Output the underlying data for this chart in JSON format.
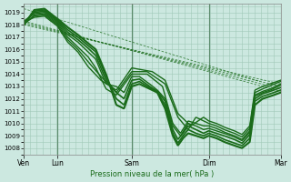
{
  "xlabel": "Pression niveau de la mer( hPa )",
  "bg_color": "#cce8e0",
  "grid_color": "#a0c8b8",
  "line_color": "#1a6b1a",
  "ylim": [
    1007.5,
    1019.7
  ],
  "yticks": [
    1008,
    1009,
    1010,
    1011,
    1012,
    1013,
    1014,
    1015,
    1016,
    1017,
    1018,
    1019
  ],
  "xtick_labels": [
    "Ven",
    "Lun",
    "Sam",
    "Dim",
    "Mar"
  ],
  "xtick_positions": [
    0.0,
    0.13,
    0.42,
    0.72,
    1.0
  ],
  "x_vlines": [
    0.0,
    0.13,
    0.42,
    0.72,
    1.0
  ],
  "dashed_lines": [
    {
      "xp": [
        0.0,
        1.0
      ],
      "yp": [
        1018.0,
        1013.2
      ]
    },
    {
      "xp": [
        0.0,
        1.0
      ],
      "yp": [
        1018.1,
        1013.0
      ]
    },
    {
      "xp": [
        0.0,
        1.0
      ],
      "yp": [
        1018.2,
        1012.8
      ]
    },
    {
      "xp": [
        0.0,
        1.0
      ],
      "yp": [
        1018.3,
        1012.6
      ]
    },
    {
      "xp": [
        0.0,
        0.92
      ],
      "yp": [
        1019.3,
        1013.4
      ]
    }
  ],
  "solid_lines": [
    {
      "xp": [
        0.0,
        0.04,
        0.08,
        0.13,
        0.17,
        0.21,
        0.25,
        0.28,
        0.32,
        0.36,
        0.39,
        0.42,
        0.45,
        0.49,
        0.52,
        0.55,
        0.58,
        0.6,
        0.62,
        0.64,
        0.67,
        0.7,
        0.72,
        0.75,
        0.78,
        0.82,
        0.85,
        0.88,
        0.9,
        0.93,
        0.96,
        1.0
      ],
      "yp": [
        1018.0,
        1019.2,
        1019.3,
        1018.5,
        1017.8,
        1017.2,
        1016.5,
        1016.0,
        1014.0,
        1011.5,
        1011.2,
        1013.0,
        1013.2,
        1012.8,
        1012.5,
        1011.2,
        1009.0,
        1008.2,
        1008.8,
        1009.2,
        1009.0,
        1008.8,
        1009.0,
        1008.8,
        1008.5,
        1008.2,
        1008.0,
        1008.5,
        1011.5,
        1012.0,
        1012.2,
        1012.5
      ],
      "lw": 1.5
    },
    {
      "xp": [
        0.0,
        0.04,
        0.08,
        0.13,
        0.17,
        0.21,
        0.25,
        0.28,
        0.32,
        0.36,
        0.39,
        0.42,
        0.45,
        0.49,
        0.52,
        0.55,
        0.58,
        0.6,
        0.62,
        0.64,
        0.67,
        0.7,
        0.72,
        0.75,
        0.78,
        0.82,
        0.85,
        0.88,
        0.9,
        0.93,
        0.96,
        1.0
      ],
      "yp": [
        1018.1,
        1019.1,
        1019.2,
        1018.4,
        1017.6,
        1017.0,
        1016.3,
        1015.8,
        1013.8,
        1012.0,
        1011.5,
        1013.2,
        1013.4,
        1012.9,
        1012.5,
        1011.5,
        1009.2,
        1008.4,
        1009.0,
        1009.5,
        1009.2,
        1009.0,
        1009.2,
        1009.0,
        1008.7,
        1008.4,
        1008.2,
        1008.8,
        1011.8,
        1012.2,
        1012.4,
        1012.7
      ],
      "lw": 1.2
    },
    {
      "xp": [
        0.0,
        0.04,
        0.08,
        0.13,
        0.17,
        0.21,
        0.25,
        0.28,
        0.32,
        0.36,
        0.39,
        0.42,
        0.45,
        0.49,
        0.52,
        0.55,
        0.58,
        0.6,
        0.62,
        0.64,
        0.67,
        0.7,
        0.72,
        0.75,
        0.78,
        0.82,
        0.85,
        0.88,
        0.9,
        0.93,
        0.96,
        1.0
      ],
      "yp": [
        1018.2,
        1019.0,
        1019.1,
        1018.3,
        1017.4,
        1016.8,
        1016.1,
        1015.5,
        1013.5,
        1012.5,
        1012.0,
        1013.5,
        1013.6,
        1013.0,
        1012.6,
        1011.8,
        1009.5,
        1008.7,
        1009.2,
        1009.8,
        1009.5,
        1009.2,
        1009.4,
        1009.2,
        1009.0,
        1008.7,
        1008.4,
        1009.1,
        1012.0,
        1012.4,
        1012.6,
        1012.9
      ],
      "lw": 1.2
    },
    {
      "xp": [
        0.0,
        0.04,
        0.08,
        0.13,
        0.17,
        0.21,
        0.25,
        0.28,
        0.32,
        0.36,
        0.39,
        0.42,
        0.45,
        0.49,
        0.52,
        0.55,
        0.58,
        0.61,
        0.64,
        0.67,
        0.7,
        0.72,
        0.75,
        0.78,
        0.82,
        0.85,
        0.88,
        0.9,
        0.93,
        0.96,
        1.0
      ],
      "yp": [
        1018.3,
        1018.9,
        1019.0,
        1018.2,
        1017.2,
        1016.6,
        1015.8,
        1015.2,
        1013.2,
        1013.0,
        1012.5,
        1013.8,
        1013.8,
        1013.2,
        1012.7,
        1012.0,
        1009.8,
        1009.0,
        1010.0,
        1009.8,
        1009.5,
        1009.6,
        1009.4,
        1009.2,
        1008.9,
        1008.6,
        1009.3,
        1012.2,
        1012.5,
        1012.7,
        1013.1
      ],
      "lw": 1.0
    },
    {
      "xp": [
        0.0,
        0.04,
        0.08,
        0.13,
        0.17,
        0.21,
        0.25,
        0.28,
        0.32,
        0.36,
        0.42,
        0.48,
        0.54,
        0.58,
        0.61,
        0.64,
        0.67,
        0.7,
        0.72,
        0.75,
        0.78,
        0.82,
        0.85,
        0.88,
        0.9,
        0.93,
        0.96,
        1.0
      ],
      "yp": [
        1018.0,
        1018.8,
        1018.9,
        1018.1,
        1017.0,
        1016.2,
        1015.4,
        1014.5,
        1012.8,
        1012.3,
        1014.0,
        1014.0,
        1013.0,
        1010.0,
        1009.2,
        1010.2,
        1010.0,
        1009.8,
        1009.8,
        1009.6,
        1009.3,
        1009.0,
        1008.7,
        1009.4,
        1012.3,
        1012.6,
        1012.8,
        1013.2
      ],
      "lw": 1.0
    },
    {
      "xp": [
        0.0,
        0.04,
        0.08,
        0.13,
        0.17,
        0.21,
        0.25,
        0.3,
        0.36,
        0.42,
        0.48,
        0.55,
        0.6,
        0.64,
        0.67,
        0.7,
        0.72,
        0.75,
        0.78,
        0.82,
        0.85,
        0.88,
        0.9,
        0.93,
        1.0
      ],
      "yp": [
        1018.1,
        1018.7,
        1018.8,
        1018.0,
        1016.8,
        1016.0,
        1015.0,
        1013.8,
        1012.5,
        1014.2,
        1014.2,
        1013.2,
        1010.5,
        1009.5,
        1010.5,
        1010.2,
        1010.0,
        1009.8,
        1009.5,
        1009.2,
        1008.9,
        1009.6,
        1012.5,
        1012.8,
        1013.4
      ],
      "lw": 1.0
    },
    {
      "xp": [
        0.0,
        0.04,
        0.08,
        0.13,
        0.17,
        0.21,
        0.25,
        0.3,
        0.36,
        0.42,
        0.5,
        0.55,
        0.6,
        0.65,
        0.7,
        0.72,
        0.75,
        0.78,
        0.82,
        0.85,
        0.88,
        0.9,
        0.93,
        1.0
      ],
      "yp": [
        1018.2,
        1018.6,
        1018.7,
        1017.9,
        1016.6,
        1015.8,
        1014.6,
        1013.5,
        1012.7,
        1014.5,
        1014.2,
        1013.5,
        1010.8,
        1009.8,
        1010.5,
        1010.2,
        1010.0,
        1009.7,
        1009.4,
        1009.1,
        1009.8,
        1012.7,
        1013.0,
        1013.5
      ],
      "lw": 1.0
    }
  ]
}
